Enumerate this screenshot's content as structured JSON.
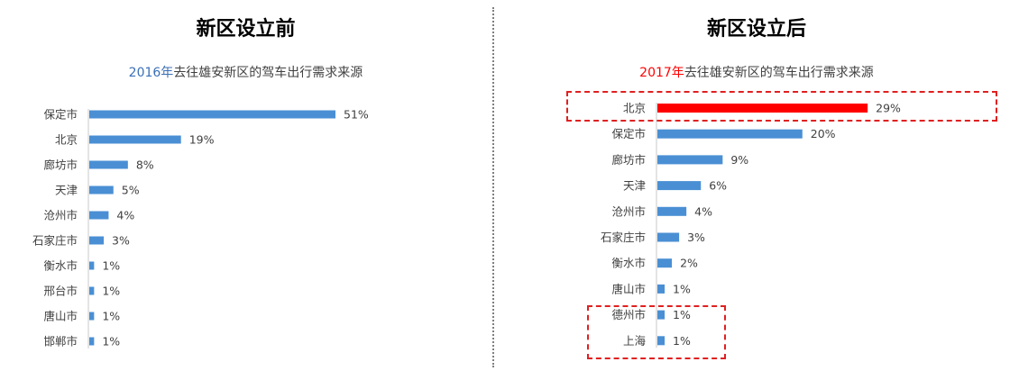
{
  "panels": [
    {
      "heading": "新区设立前",
      "subtitle_year": "2016年",
      "subtitle_rest": "去往雄安新区的驾车出行需求来源"
    },
    {
      "heading": "新区设立后",
      "subtitle_year": "2017年",
      "subtitle_rest": "去往雄安新区的驾车出行需求来源"
    }
  ],
  "colors": {
    "bar": "#4a8fd4",
    "highlight_bar": "#ff0000",
    "year_before": "#3b6fb6",
    "year_after": "#ff0000",
    "highlight_box": "#e02020"
  },
  "chart_data": [
    {
      "type": "bar",
      "orientation": "horizontal",
      "title": "2016年去往雄安新区的驾车出行需求来源",
      "categories": [
        "保定市",
        "北京",
        "廊坊市",
        "天津",
        "沧州市",
        "石家庄市",
        "衡水市",
        "邢台市",
        "唐山市",
        "邯郸市"
      ],
      "values": [
        51,
        19,
        8,
        5,
        4,
        3,
        1,
        1,
        1,
        1
      ],
      "value_labels": [
        "51%",
        "19%",
        "8%",
        "5%",
        "4%",
        "3%",
        "1%",
        "1%",
        "1%",
        "1%"
      ],
      "unit": "%",
      "xlim": [
        0,
        51
      ],
      "grid": false,
      "highlighted": []
    },
    {
      "type": "bar",
      "orientation": "horizontal",
      "title": "2017年去往雄安新区的驾车出行需求来源",
      "categories": [
        "北京",
        "保定市",
        "廊坊市",
        "天津",
        "沧州市",
        "石家庄市",
        "衡水市",
        "唐山市",
        "德州市",
        "上海"
      ],
      "values": [
        29,
        20,
        9,
        6,
        4,
        3,
        2,
        1,
        1,
        1
      ],
      "value_labels": [
        "29%",
        "20%",
        "9%",
        "6%",
        "4%",
        "3%",
        "2%",
        "1%",
        "1%",
        "1%"
      ],
      "unit": "%",
      "xlim": [
        0,
        51
      ],
      "grid": false,
      "highlighted": [
        "北京"
      ],
      "boxed_groups": [
        [
          "北京"
        ],
        [
          "德州市",
          "上海"
        ]
      ]
    }
  ]
}
